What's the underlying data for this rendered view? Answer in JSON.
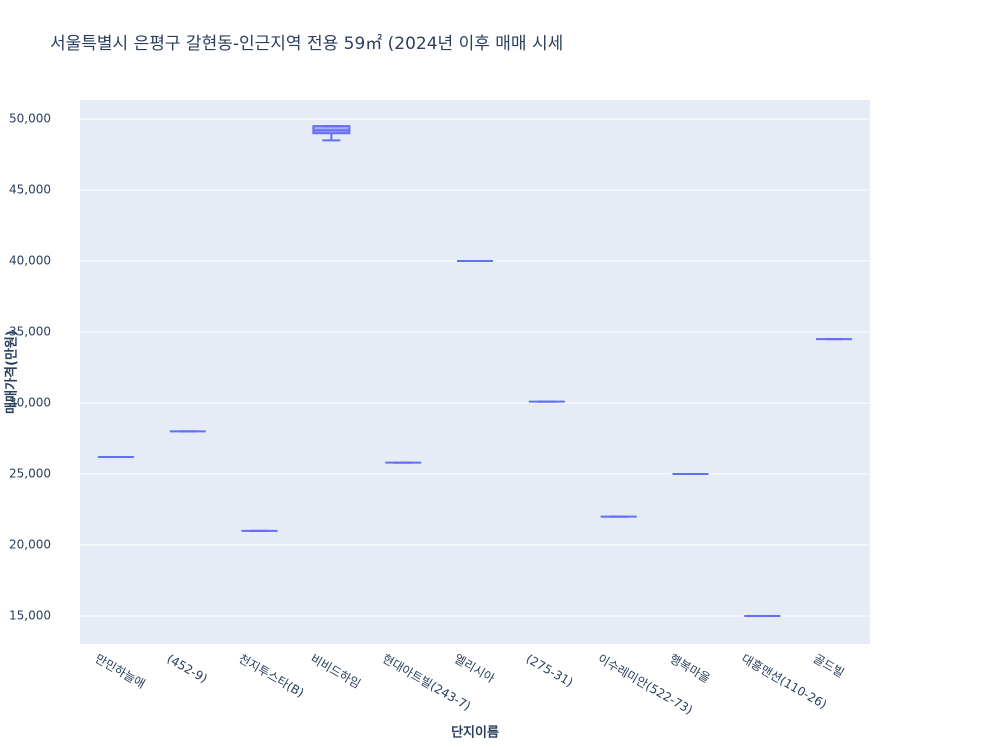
{
  "chart_data": {
    "type": "box",
    "title": "서울특별시 은평구 갈현동-인근지역 전용 59㎡ (2024년 이후 매매 시세",
    "x_label": "단지이름",
    "y_label": "매매가격(만원)",
    "categories": [
      "만민하늘애",
      "(452-9)",
      "천지투스타(B)",
      "비비드하임",
      "현대아트빌(243-7)",
      "엘리시아",
      "(275-31)",
      "이수레미안(522-73)",
      "행복마을",
      "대흥맨션(110-26)",
      "골드빌"
    ],
    "color": "#636efa",
    "min": [
      26200,
      28000,
      21000,
      48500,
      25800,
      40000,
      30100,
      22000,
      25000,
      15000,
      34500
    ],
    "q1": [
      26200,
      28000,
      21000,
      49000,
      25800,
      40000,
      30100,
      22000,
      25000,
      15000,
      34500
    ],
    "median": [
      26200,
      28000,
      21000,
      49200,
      25800,
      40000,
      30100,
      22000,
      25000,
      15000,
      34500
    ],
    "q3": [
      26200,
      28000,
      21000,
      49500,
      25800,
      40000,
      30100,
      22000,
      25000,
      15000,
      34500
    ],
    "max": [
      26200,
      28000,
      21000,
      49500,
      25800,
      40000,
      30100,
      22000,
      25000,
      15000,
      34500
    ],
    "ylim": [
      13030,
      51340
    ],
    "yticks": [
      {
        "value": 15000,
        "label": "15,000"
      },
      {
        "value": 20000,
        "label": "20,000"
      },
      {
        "value": 25000,
        "label": "25,000"
      },
      {
        "value": 30000,
        "label": "30,000"
      },
      {
        "value": 35000,
        "label": "35,000"
      },
      {
        "value": 40000,
        "label": "40,000"
      },
      {
        "value": 45000,
        "label": "45,000"
      },
      {
        "value": 50000,
        "label": "50,000"
      }
    ],
    "grid": true
  }
}
